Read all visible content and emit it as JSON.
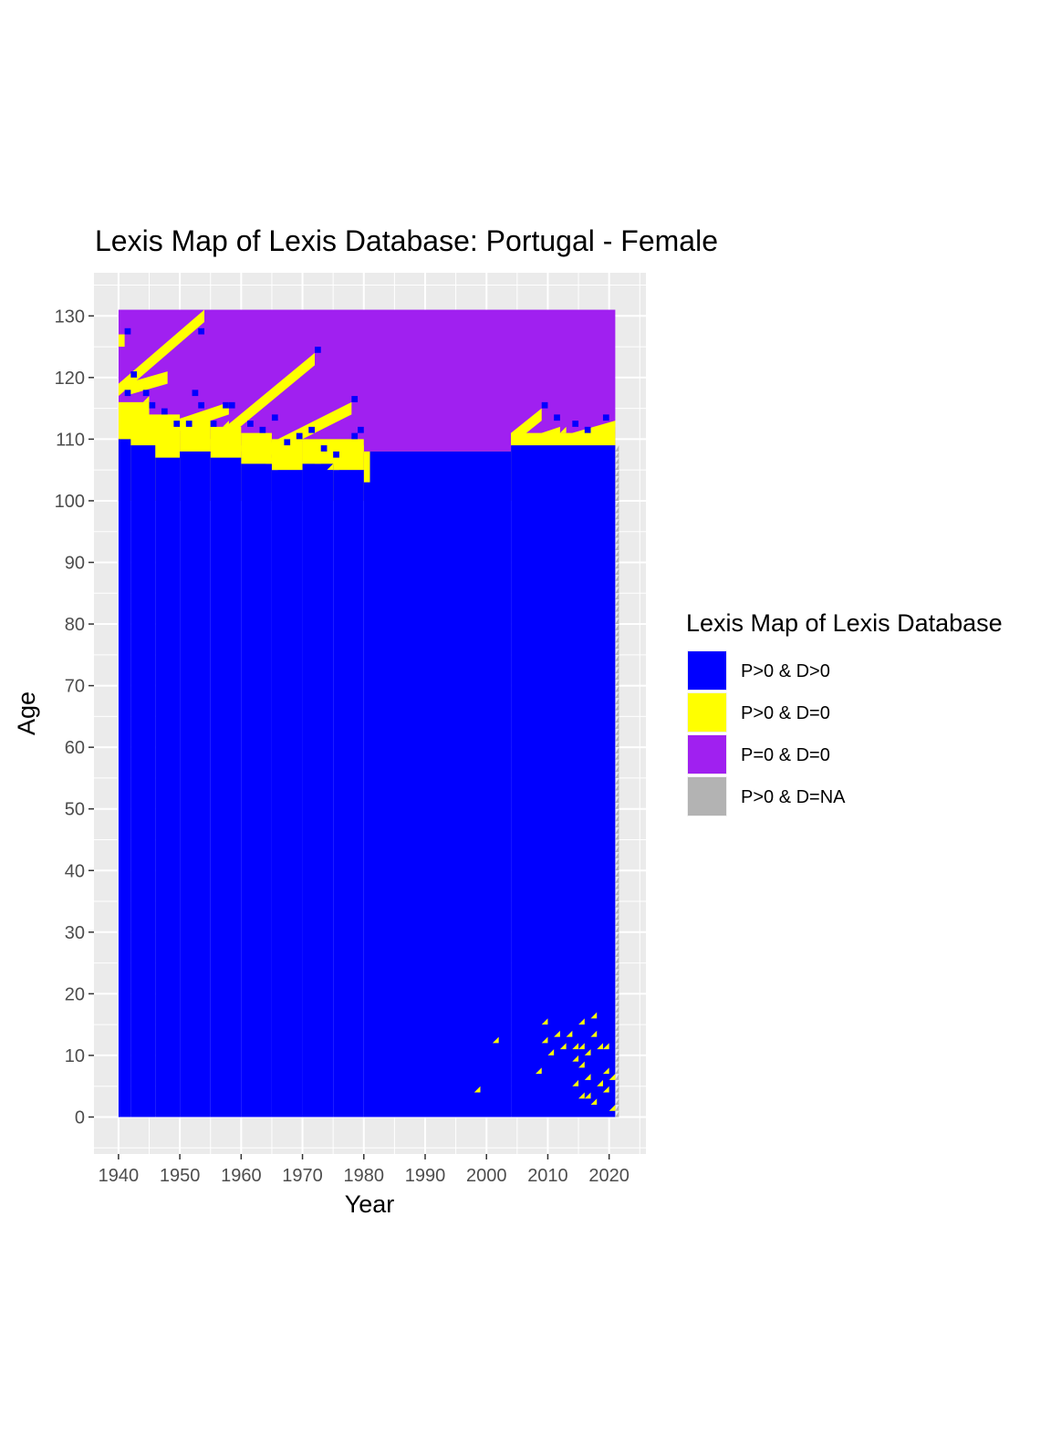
{
  "chart_data": {
    "type": "heatmap",
    "title": "Lexis Map of Lexis Database: Portugal - Female",
    "xlabel": "Year",
    "ylabel": "Age",
    "xlim": [
      1936,
      2026
    ],
    "ylim": [
      -6,
      137
    ],
    "x_ticks": [
      1940,
      1950,
      1960,
      1970,
      1980,
      1990,
      2000,
      2010,
      2020
    ],
    "y_ticks": [
      0,
      10,
      20,
      30,
      40,
      50,
      60,
      70,
      80,
      90,
      100,
      110,
      120,
      130
    ],
    "grid": true,
    "legend_position": "right",
    "legend": {
      "title": "Lexis Map of Lexis Database",
      "entries": [
        {
          "key": "pd",
          "label": "P>0 & D>0",
          "color": "#0000ff"
        },
        {
          "key": "p0",
          "label": "P>0 & D=0",
          "color": "#ffff00"
        },
        {
          "key": "zz",
          "label": "P=0 & D=0",
          "color": "#a020f0"
        },
        {
          "key": "na",
          "label": "P>0 & D=NA",
          "color": "#b3b3b3"
        }
      ]
    },
    "extent": {
      "year_start": 1940,
      "year_end": 2021,
      "age_min": 0,
      "age_max": 131
    },
    "blue_top_by_period": [
      {
        "year_start": 1940,
        "year_end": 1942,
        "age": 110
      },
      {
        "year_start": 1942,
        "year_end": 1946,
        "age": 109
      },
      {
        "year_start": 1946,
        "year_end": 1950,
        "age": 107
      },
      {
        "year_start": 1950,
        "year_end": 1955,
        "age": 108
      },
      {
        "year_start": 1955,
        "year_end": 1960,
        "age": 107
      },
      {
        "year_start": 1960,
        "year_end": 1965,
        "age": 106
      },
      {
        "year_start": 1965,
        "year_end": 1970,
        "age": 105
      },
      {
        "year_start": 1970,
        "year_end": 1975,
        "age": 106
      },
      {
        "year_start": 1975,
        "year_end": 1980,
        "age": 105
      },
      {
        "year_start": 1980,
        "year_end": 1981,
        "age": 103
      },
      {
        "year_start": 1981,
        "year_end": 2004,
        "age": 108
      },
      {
        "year_start": 2004,
        "year_end": 2021,
        "age": 109
      }
    ],
    "purple_bottom_by_period": [
      {
        "year_start": 1940,
        "year_end": 1945,
        "age": 116
      },
      {
        "year_start": 1945,
        "year_end": 1950,
        "age": 114
      },
      {
        "year_start": 1950,
        "year_end": 1955,
        "age": 113
      },
      {
        "year_start": 1955,
        "year_end": 1960,
        "age": 112
      },
      {
        "year_start": 1960,
        "year_end": 1965,
        "age": 111
      },
      {
        "year_start": 1965,
        "year_end": 1970,
        "age": 110
      },
      {
        "year_start": 1970,
        "year_end": 1980,
        "age": 110
      },
      {
        "year_start": 1980,
        "year_end": 2004,
        "age": 108
      },
      {
        "year_start": 2004,
        "year_end": 2021,
        "age": 111
      }
    ],
    "cohort_bands": [
      {
        "year_start": 1940,
        "year_end": 1941,
        "age_start": 125,
        "age_end": 127
      },
      {
        "year_start": 1940,
        "year_end": 1954,
        "age_start": 117,
        "age_end": 131
      },
      {
        "year_start": 1941,
        "year_end": 1948,
        "age_start": 117,
        "age_end": 121
      },
      {
        "year_start": 1946,
        "year_end": 1958,
        "age_start": 110,
        "age_end": 116
      },
      {
        "year_start": 1955,
        "year_end": 1972,
        "age_start": 108,
        "age_end": 124
      },
      {
        "year_start": 1962,
        "year_end": 1978,
        "age_start": 106,
        "age_end": 116
      },
      {
        "year_start": 2004,
        "year_end": 2009,
        "age_start": 109,
        "age_end": 115
      },
      {
        "year_start": 2009,
        "year_end": 2012,
        "age_start": 109,
        "age_end": 112
      },
      {
        "year_start": 2014,
        "year_end": 2021,
        "age_start": 109,
        "age_end": 113
      }
    ],
    "d0_cells": [
      {
        "year": 1942,
        "age": 118
      },
      {
        "year": 1944,
        "age": 116
      },
      {
        "year": 1946,
        "age": 113
      },
      {
        "year": 1950,
        "age": 111
      },
      {
        "year": 1951,
        "age": 112
      },
      {
        "year": 1953,
        "age": 110
      },
      {
        "year": 1956,
        "age": 109
      },
      {
        "year": 1957,
        "age": 112
      },
      {
        "year": 1959,
        "age": 108
      },
      {
        "year": 1961,
        "age": 107
      },
      {
        "year": 1962,
        "age": 109
      },
      {
        "year": 1964,
        "age": 106
      },
      {
        "year": 1966,
        "age": 106
      },
      {
        "year": 1968,
        "age": 108
      },
      {
        "year": 1970,
        "age": 107
      },
      {
        "year": 1972,
        "age": 106
      },
      {
        "year": 1974,
        "age": 105
      },
      {
        "year": 1976,
        "age": 107
      },
      {
        "year": 1977,
        "age": 106
      },
      {
        "year": 1979,
        "age": 108
      },
      {
        "year": 1980,
        "age": 104
      },
      {
        "year": 1943,
        "age": 111
      },
      {
        "year": 1947,
        "age": 108
      },
      {
        "year": 1954,
        "age": 109
      },
      {
        "year": 1965,
        "age": 105
      },
      {
        "year": 1975,
        "age": 105
      },
      {
        "year": 1998,
        "age": 4
      },
      {
        "year": 2001,
        "age": 12
      },
      {
        "year": 2008,
        "age": 7
      },
      {
        "year": 2009,
        "age": 15
      },
      {
        "year": 2009,
        "age": 12
      },
      {
        "year": 2010,
        "age": 10
      },
      {
        "year": 2011,
        "age": 13
      },
      {
        "year": 2012,
        "age": 11
      },
      {
        "year": 2013,
        "age": 13
      },
      {
        "year": 2014,
        "age": 9
      },
      {
        "year": 2014,
        "age": 5
      },
      {
        "year": 2014,
        "age": 11
      },
      {
        "year": 2015,
        "age": 15
      },
      {
        "year": 2015,
        "age": 8
      },
      {
        "year": 2015,
        "age": 3
      },
      {
        "year": 2015,
        "age": 11
      },
      {
        "year": 2016,
        "age": 10
      },
      {
        "year": 2016,
        "age": 6
      },
      {
        "year": 2016,
        "age": 3
      },
      {
        "year": 2017,
        "age": 16
      },
      {
        "year": 2017,
        "age": 13
      },
      {
        "year": 2017,
        "age": 2
      },
      {
        "year": 2018,
        "age": 11
      },
      {
        "year": 2018,
        "age": 5
      },
      {
        "year": 2019,
        "age": 7
      },
      {
        "year": 2019,
        "age": 4
      },
      {
        "year": 2019,
        "age": 11
      },
      {
        "year": 2020,
        "age": 6
      },
      {
        "year": 2020,
        "age": 1
      },
      {
        "year": 2009,
        "age": 110
      },
      {
        "year": 2012,
        "age": 111
      },
      {
        "year": 2015,
        "age": 110
      },
      {
        "year": 2018,
        "age": 111
      },
      {
        "year": 2020,
        "age": 112
      }
    ],
    "pd_cells": [
      {
        "year": 1941,
        "age": 127
      },
      {
        "year": 1942,
        "age": 120
      },
      {
        "year": 1941,
        "age": 117
      },
      {
        "year": 1944,
        "age": 117
      },
      {
        "year": 1945,
        "age": 115
      },
      {
        "year": 1947,
        "age": 114
      },
      {
        "year": 1949,
        "age": 112
      },
      {
        "year": 1952,
        "age": 117
      },
      {
        "year": 1953,
        "age": 127
      },
      {
        "year": 1953,
        "age": 115
      },
      {
        "year": 1951,
        "age": 112
      },
      {
        "year": 1955,
        "age": 112
      },
      {
        "year": 1957,
        "age": 115
      },
      {
        "year": 1958,
        "age": 115
      },
      {
        "year": 1961,
        "age": 112
      },
      {
        "year": 1963,
        "age": 111
      },
      {
        "year": 1965,
        "age": 113
      },
      {
        "year": 1967,
        "age": 109
      },
      {
        "year": 1969,
        "age": 110
      },
      {
        "year": 1971,
        "age": 111
      },
      {
        "year": 1972,
        "age": 124
      },
      {
        "year": 1973,
        "age": 108
      },
      {
        "year": 1975,
        "age": 107
      },
      {
        "year": 1978,
        "age": 116
      },
      {
        "year": 1978,
        "age": 110
      },
      {
        "year": 1979,
        "age": 111
      },
      {
        "year": 2009,
        "age": 115
      },
      {
        "year": 2011,
        "age": 113
      },
      {
        "year": 2014,
        "age": 112
      },
      {
        "year": 2016,
        "age": 111
      },
      {
        "year": 2019,
        "age": 113
      }
    ],
    "na_column": {
      "year": 2021,
      "age_start": 0,
      "age_end": 109
    }
  }
}
